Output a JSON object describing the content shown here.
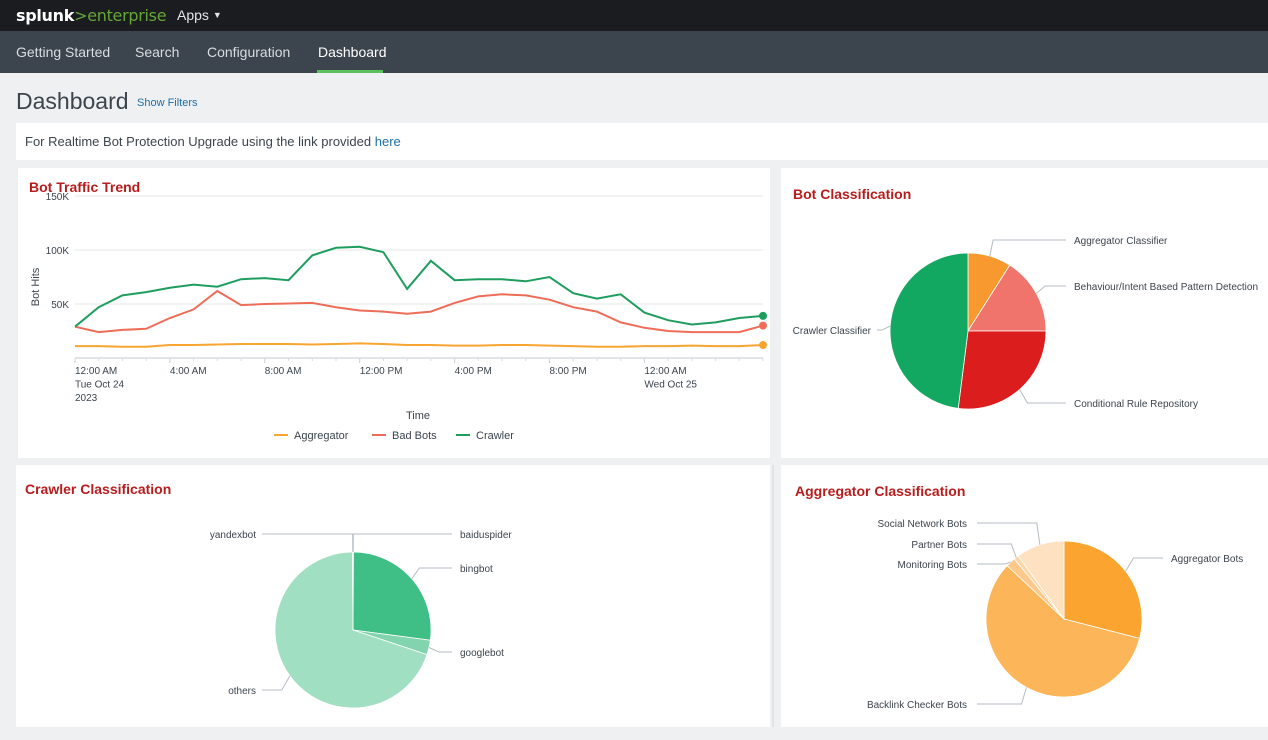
{
  "header": {
    "logo_brand": "splunk",
    "logo_sep": ">",
    "logo_product": "enterprise",
    "apps_label": "Apps"
  },
  "nav": {
    "items": [
      {
        "label": "Getting Started"
      },
      {
        "label": "Search"
      },
      {
        "label": "Configuration"
      },
      {
        "label": "Dashboard",
        "active": true
      }
    ]
  },
  "page": {
    "title": "Dashboard",
    "show_filters": "Show Filters",
    "banner_text": "For Realtime Bot Protection Upgrade using the link provided",
    "banner_link": "here"
  },
  "colors": {
    "accent_green": "#65a637",
    "panel_title": "#b81c1c",
    "link": "#1e6fa8",
    "nav_underline": "#5cc05c"
  },
  "panels": {
    "trend": {
      "title": "Bot Traffic Trend"
    },
    "bot_class": {
      "title": "Bot Classification"
    },
    "crawler_class": {
      "title": "Crawler Classification"
    },
    "agg_class": {
      "title": "Aggregator Classification"
    }
  },
  "chart_data": [
    {
      "type": "line",
      "title": "Bot Traffic Trend",
      "xlabel": "Time",
      "ylabel": "Bot Hits",
      "ylim": [
        0,
        150000
      ],
      "yticks": [
        {
          "value": 150000,
          "label": "150K"
        },
        {
          "value": 100000,
          "label": "100K"
        },
        {
          "value": 50000,
          "label": "50K"
        }
      ],
      "x": [
        "00:00",
        "01:00",
        "02:00",
        "03:00",
        "04:00",
        "05:00",
        "06:00",
        "07:00",
        "08:00",
        "09:00",
        "10:00",
        "11:00",
        "12:00",
        "13:00",
        "14:00",
        "15:00",
        "16:00",
        "17:00",
        "18:00",
        "19:00",
        "20:00",
        "21:00",
        "22:00",
        "23:00",
        "24:00",
        "25:00",
        "26:00",
        "27:00",
        "28:00",
        "29:00"
      ],
      "xticks": [
        {
          "hour": 0,
          "lines": [
            "12:00 AM",
            "Tue Oct 24",
            "2023"
          ]
        },
        {
          "hour": 4,
          "lines": [
            "4:00 AM"
          ]
        },
        {
          "hour": 8,
          "lines": [
            "8:00 AM"
          ]
        },
        {
          "hour": 12,
          "lines": [
            "12:00 PM"
          ]
        },
        {
          "hour": 16,
          "lines": [
            "4:00 PM"
          ]
        },
        {
          "hour": 20,
          "lines": [
            "8:00 PM"
          ]
        },
        {
          "hour": 24,
          "lines": [
            "12:00 AM",
            "Wed Oct 25"
          ]
        }
      ],
      "legend_position": "bottom",
      "series": [
        {
          "name": "Aggregator",
          "color": "#f8a531",
          "values": [
            11000,
            11000,
            10500,
            10500,
            12000,
            12000,
            12500,
            13000,
            13000,
            13000,
            12500,
            13000,
            13500,
            13000,
            12000,
            12000,
            11500,
            11500,
            12000,
            12000,
            11500,
            11000,
            10500,
            10500,
            11000,
            11000,
            11500,
            11000,
            11000,
            12000
          ]
        },
        {
          "name": "Bad Bots",
          "color": "#ee6d58",
          "values": [
            29000,
            24000,
            26000,
            27000,
            37000,
            45000,
            62000,
            49000,
            50000,
            50500,
            51000,
            47000,
            44000,
            43000,
            41000,
            43000,
            51000,
            57000,
            59000,
            58000,
            54000,
            47000,
            43000,
            33000,
            28000,
            25000,
            24000,
            24000,
            24000,
            30000
          ]
        },
        {
          "name": "Crawler",
          "color": "#1e9e5e",
          "values": [
            29000,
            47000,
            58000,
            61000,
            65000,
            68000,
            66000,
            73000,
            74000,
            72000,
            95000,
            102000,
            103000,
            98000,
            64000,
            90000,
            72000,
            73000,
            73000,
            71000,
            75000,
            60000,
            55000,
            59000,
            42000,
            35000,
            31000,
            33000,
            37000,
            39000
          ]
        }
      ]
    },
    {
      "type": "pie",
      "title": "Bot Classification",
      "slices": [
        {
          "label": "Aggregator Classifier",
          "value": 9,
          "color": "#f7992e"
        },
        {
          "label": "Behaviour/Intent Based Pattern Detection",
          "value": 16,
          "color": "#f0736c"
        },
        {
          "label": "Conditional Rule Repository",
          "value": 27,
          "color": "#dc1d1d"
        },
        {
          "label": "Crawler Classifier",
          "value": 48,
          "color": "#12a862"
        }
      ]
    },
    {
      "type": "pie",
      "title": "Crawler Classification",
      "slices": [
        {
          "label": "baiduspider",
          "value": 0.1,
          "color": "#1d8a55"
        },
        {
          "label": "bingbot",
          "value": 27,
          "color": "#3fbf85"
        },
        {
          "label": "googlebot",
          "value": 3,
          "color": "#82d4ae"
        },
        {
          "label": "others",
          "value": 69.8,
          "color": "#a1dfc3"
        },
        {
          "label": "yandexbot",
          "value": 0.1,
          "color": "#6fc99c"
        }
      ]
    },
    {
      "type": "pie",
      "title": "Aggregator Classification",
      "slices": [
        {
          "label": "Aggregator Bots",
          "value": 29,
          "color": "#fba42f"
        },
        {
          "label": "Backlink Checker Bots",
          "value": 58,
          "color": "#fdb55a"
        },
        {
          "label": "Monitoring Bots",
          "value": 2,
          "color": "#fec88a"
        },
        {
          "label": "Partner Bots",
          "value": 1,
          "color": "#fed6a6"
        },
        {
          "label": "Social Network Bots",
          "value": 10,
          "color": "#fee1c0"
        }
      ]
    }
  ]
}
